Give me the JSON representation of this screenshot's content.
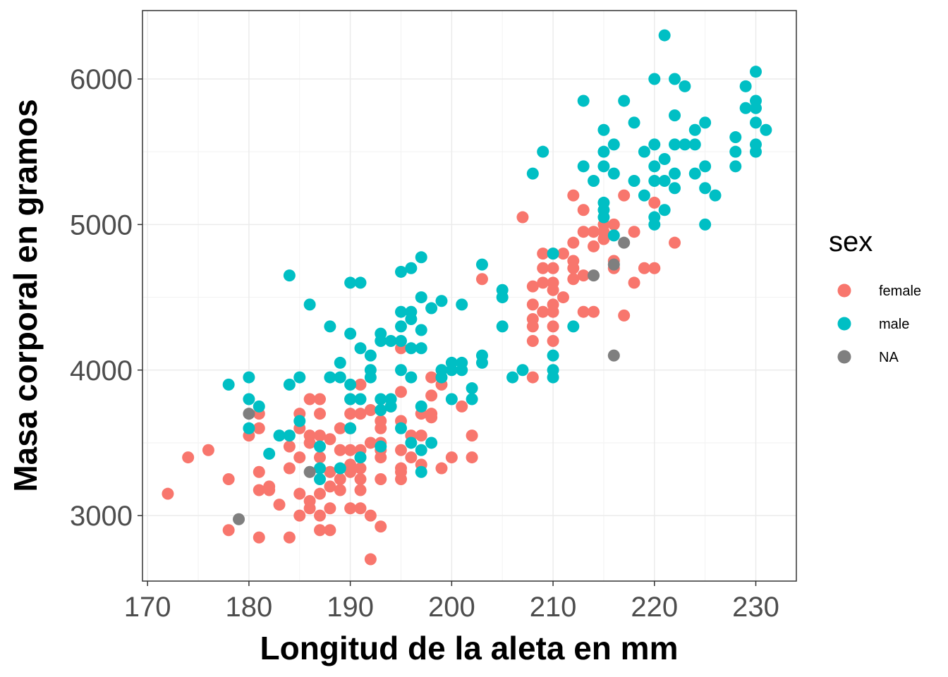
{
  "chart_data": {
    "type": "scatter",
    "title": "",
    "xlabel": "Longitud de la aleta en mm",
    "ylabel": "Masa corporal en gramos",
    "xlim": [
      169.5,
      234
    ],
    "ylim": [
      2550,
      6470
    ],
    "x_ticks": [
      170,
      180,
      190,
      200,
      210,
      220,
      230
    ],
    "y_ticks": [
      3000,
      4000,
      5000,
      6000
    ],
    "x_tick_labels": [
      "170",
      "180",
      "190",
      "200",
      "210",
      "220",
      "230"
    ],
    "y_tick_labels": [
      "3000",
      "4000",
      "5000",
      "6000"
    ],
    "grid": true,
    "legend": {
      "title": "sex",
      "position": "right",
      "entries": [
        "female",
        "male",
        "NA"
      ]
    },
    "series": [
      {
        "name": "female",
        "color": "#F8766D",
        "points": [
          [
            172,
            3150
          ],
          [
            174,
            3400
          ],
          [
            176,
            3450
          ],
          [
            178,
            3250
          ],
          [
            178,
            2900
          ],
          [
            180,
            3550
          ],
          [
            181,
            3700
          ],
          [
            181,
            3600
          ],
          [
            181,
            3300
          ],
          [
            181,
            3175
          ],
          [
            181,
            2850
          ],
          [
            182,
            3200
          ],
          [
            182,
            3175
          ],
          [
            183,
            3075
          ],
          [
            184,
            3475
          ],
          [
            184,
            3325
          ],
          [
            184,
            2850
          ],
          [
            185,
            3700
          ],
          [
            185,
            3600
          ],
          [
            185,
            3400
          ],
          [
            185,
            3150
          ],
          [
            185,
            3000
          ],
          [
            186,
            3800
          ],
          [
            186,
            3550
          ],
          [
            186,
            3500
          ],
          [
            186,
            3100
          ],
          [
            186,
            3050
          ],
          [
            187,
            3800
          ],
          [
            187,
            3700
          ],
          [
            187,
            3550
          ],
          [
            187,
            3400
          ],
          [
            187,
            3150
          ],
          [
            187,
            3000
          ],
          [
            187,
            2900
          ],
          [
            188,
            3525
          ],
          [
            188,
            3300
          ],
          [
            188,
            3200
          ],
          [
            188,
            3050
          ],
          [
            188,
            2900
          ],
          [
            189,
            3600
          ],
          [
            189,
            3450
          ],
          [
            189,
            3250
          ],
          [
            189,
            3175
          ],
          [
            190,
            3800
          ],
          [
            190,
            3700
          ],
          [
            190,
            3600
          ],
          [
            190,
            3450
          ],
          [
            190,
            3350
          ],
          [
            190,
            3300
          ],
          [
            190,
            3050
          ],
          [
            191,
            3900
          ],
          [
            191,
            3700
          ],
          [
            191,
            3450
          ],
          [
            191,
            3400
          ],
          [
            191,
            3325
          ],
          [
            191,
            3250
          ],
          [
            191,
            3175
          ],
          [
            191,
            3050
          ],
          [
            192,
            3725
          ],
          [
            192,
            3500
          ],
          [
            192,
            3000
          ],
          [
            192,
            2700
          ],
          [
            193,
            3650
          ],
          [
            193,
            3600
          ],
          [
            193,
            3500
          ],
          [
            193,
            3450
          ],
          [
            193,
            3400
          ],
          [
            193,
            3250
          ],
          [
            193,
            2925
          ],
          [
            194,
            3750
          ],
          [
            195,
            4150
          ],
          [
            195,
            3850
          ],
          [
            195,
            3650
          ],
          [
            195,
            3450
          ],
          [
            195,
            3325
          ],
          [
            195,
            3300
          ],
          [
            195,
            3250
          ],
          [
            196,
            3550
          ],
          [
            196,
            3400
          ],
          [
            197,
            3700
          ],
          [
            197,
            3550
          ],
          [
            197,
            3350
          ],
          [
            198,
            3950
          ],
          [
            198,
            3825
          ],
          [
            198,
            3700
          ],
          [
            198,
            3675
          ],
          [
            199,
            3900
          ],
          [
            199,
            3325
          ],
          [
            200,
            3400
          ],
          [
            201,
            3750
          ],
          [
            202,
            3550
          ],
          [
            202,
            3400
          ],
          [
            203,
            4625
          ],
          [
            207,
            5050
          ],
          [
            208,
            4575
          ],
          [
            208,
            4450
          ],
          [
            208,
            4350
          ],
          [
            208,
            4300
          ],
          [
            208,
            4200
          ],
          [
            208,
            3950
          ],
          [
            209,
            4800
          ],
          [
            209,
            4700
          ],
          [
            209,
            4600
          ],
          [
            209,
            4400
          ],
          [
            210,
            4800
          ],
          [
            210,
            4700
          ],
          [
            210,
            4600
          ],
          [
            210,
            4550
          ],
          [
            210,
            4450
          ],
          [
            210,
            4400
          ],
          [
            210,
            4300
          ],
          [
            210,
            4200
          ],
          [
            211,
            4800
          ],
          [
            211,
            4500
          ],
          [
            212,
            5200
          ],
          [
            212,
            4875
          ],
          [
            212,
            4750
          ],
          [
            212,
            4700
          ],
          [
            212,
            4625
          ],
          [
            213,
            5100
          ],
          [
            213,
            4950
          ],
          [
            213,
            4650
          ],
          [
            213,
            4400
          ],
          [
            214,
            4950
          ],
          [
            214,
            4850
          ],
          [
            214,
            4400
          ],
          [
            215,
            5000
          ],
          [
            215,
            4950
          ],
          [
            215,
            4900
          ],
          [
            216,
            5000
          ],
          [
            216,
            4750
          ],
          [
            216,
            4700
          ],
          [
            217,
            5200
          ],
          [
            217,
            4375
          ],
          [
            218,
            4950
          ],
          [
            218,
            4600
          ],
          [
            219,
            4700
          ],
          [
            220,
            5150
          ],
          [
            220,
            4700
          ],
          [
            222,
            4875
          ]
        ]
      },
      {
        "name": "male",
        "color": "#00BFC4",
        "points": [
          [
            178,
            3900
          ],
          [
            180,
            3950
          ],
          [
            180,
            3800
          ],
          [
            180,
            3600
          ],
          [
            181,
            3750
          ],
          [
            182,
            3425
          ],
          [
            183,
            3550
          ],
          [
            184,
            4650
          ],
          [
            184,
            3900
          ],
          [
            184,
            3550
          ],
          [
            185,
            3950
          ],
          [
            185,
            3650
          ],
          [
            186,
            4450
          ],
          [
            187,
            3475
          ],
          [
            187,
            3325
          ],
          [
            187,
            3250
          ],
          [
            188,
            4300
          ],
          [
            188,
            3950
          ],
          [
            189,
            4050
          ],
          [
            189,
            3950
          ],
          [
            189,
            3325
          ],
          [
            190,
            4600
          ],
          [
            190,
            4250
          ],
          [
            190,
            3900
          ],
          [
            190,
            3800
          ],
          [
            190,
            3600
          ],
          [
            191,
            4600
          ],
          [
            191,
            4150
          ],
          [
            191,
            3800
          ],
          [
            191,
            3400
          ],
          [
            192,
            4100
          ],
          [
            192,
            4000
          ],
          [
            192,
            3950
          ],
          [
            193,
            4250
          ],
          [
            193,
            4200
          ],
          [
            193,
            3800
          ],
          [
            193,
            3725
          ],
          [
            193,
            3475
          ],
          [
            194,
            4200
          ],
          [
            194,
            3800
          ],
          [
            194,
            3750
          ],
          [
            195,
            4675
          ],
          [
            195,
            4400
          ],
          [
            195,
            4300
          ],
          [
            195,
            4200
          ],
          [
            195,
            4000
          ],
          [
            195,
            3600
          ],
          [
            196,
            4700
          ],
          [
            196,
            4400
          ],
          [
            196,
            4350
          ],
          [
            196,
            4150
          ],
          [
            196,
            3950
          ],
          [
            196,
            3500
          ],
          [
            197,
            4775
          ],
          [
            197,
            4500
          ],
          [
            197,
            4275
          ],
          [
            197,
            4150
          ],
          [
            197,
            3750
          ],
          [
            197,
            3450
          ],
          [
            197,
            3300
          ],
          [
            198,
            4425
          ],
          [
            198,
            3500
          ],
          [
            199,
            4475
          ],
          [
            199,
            4000
          ],
          [
            199,
            3950
          ],
          [
            200,
            4050
          ],
          [
            200,
            4000
          ],
          [
            200,
            3800
          ],
          [
            201,
            4450
          ],
          [
            201,
            4050
          ],
          [
            201,
            4000
          ],
          [
            202,
            3875
          ],
          [
            202,
            3800
          ],
          [
            203,
            4725
          ],
          [
            203,
            4100
          ],
          [
            203,
            4050
          ],
          [
            205,
            4550
          ],
          [
            205,
            4500
          ],
          [
            205,
            4300
          ],
          [
            206,
            3950
          ],
          [
            207,
            4000
          ],
          [
            208,
            5350
          ],
          [
            209,
            5500
          ],
          [
            210,
            4800
          ],
          [
            210,
            4100
          ],
          [
            210,
            4000
          ],
          [
            210,
            3950
          ],
          [
            212,
            4300
          ],
          [
            213,
            5850
          ],
          [
            213,
            5400
          ],
          [
            214,
            5300
          ],
          [
            215,
            5650
          ],
          [
            215,
            5500
          ],
          [
            215,
            5400
          ],
          [
            215,
            5150
          ],
          [
            215,
            5100
          ],
          [
            215,
            5050
          ],
          [
            216,
            5550
          ],
          [
            216,
            5350
          ],
          [
            216,
            4925
          ],
          [
            217,
            5850
          ],
          [
            218,
            5700
          ],
          [
            218,
            5300
          ],
          [
            219,
            5500
          ],
          [
            219,
            5200
          ],
          [
            220,
            6000
          ],
          [
            220,
            5550
          ],
          [
            220,
            5400
          ],
          [
            220,
            5300
          ],
          [
            220,
            5050
          ],
          [
            220,
            5000
          ],
          [
            221,
            6300
          ],
          [
            221,
            5450
          ],
          [
            221,
            5300
          ],
          [
            221,
            5100
          ],
          [
            222,
            6000
          ],
          [
            222,
            5750
          ],
          [
            222,
            5550
          ],
          [
            222,
            5350
          ],
          [
            222,
            5250
          ],
          [
            223,
            5950
          ],
          [
            223,
            5550
          ],
          [
            224,
            5650
          ],
          [
            224,
            5550
          ],
          [
            224,
            5350
          ],
          [
            225,
            5700
          ],
          [
            225,
            5400
          ],
          [
            225,
            5250
          ],
          [
            225,
            5000
          ],
          [
            226,
            5200
          ],
          [
            228,
            5600
          ],
          [
            228,
            5500
          ],
          [
            228,
            5400
          ],
          [
            229,
            5950
          ],
          [
            229,
            5800
          ],
          [
            230,
            6050
          ],
          [
            230,
            5850
          ],
          [
            230,
            5800
          ],
          [
            230,
            5700
          ],
          [
            230,
            5550
          ],
          [
            230,
            5500
          ],
          [
            231,
            5650
          ]
        ]
      },
      {
        "name": "NA",
        "color": "#7F7F7F",
        "points": [
          [
            179,
            2975
          ],
          [
            180,
            3700
          ],
          [
            186,
            3300
          ],
          [
            214,
            4650
          ],
          [
            216,
            4725
          ],
          [
            216,
            4100
          ],
          [
            217,
            4875
          ]
        ]
      }
    ]
  }
}
